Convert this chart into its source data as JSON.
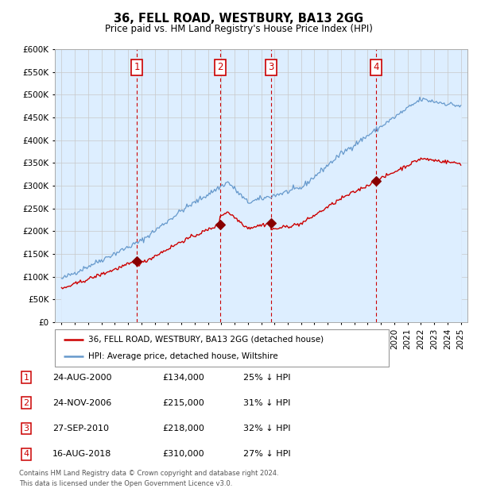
{
  "title": "36, FELL ROAD, WESTBURY, BA13 2GG",
  "subtitle": "Price paid vs. HM Land Registry's House Price Index (HPI)",
  "legend_line1": "36, FELL ROAD, WESTBURY, BA13 2GG (detached house)",
  "legend_line2": "HPI: Average price, detached house, Wiltshire",
  "footer1": "Contains HM Land Registry data © Crown copyright and database right 2024.",
  "footer2": "This data is licensed under the Open Government Licence v3.0.",
  "transactions": [
    {
      "label": "1",
      "date": "24-AUG-2000",
      "price": 134000,
      "hpi_diff": "25% ↓ HPI",
      "x": 2000.65
    },
    {
      "label": "2",
      "date": "24-NOV-2006",
      "price": 215000,
      "hpi_diff": "31% ↓ HPI",
      "x": 2006.9
    },
    {
      "label": "3",
      "date": "27-SEP-2010",
      "price": 218000,
      "hpi_diff": "32% ↓ HPI",
      "x": 2010.74
    },
    {
      "label": "4",
      "date": "16-AUG-2018",
      "price": 310000,
      "hpi_diff": "27% ↓ HPI",
      "x": 2018.62
    }
  ],
  "red_line_color": "#cc0000",
  "blue_line_color": "#6699cc",
  "blue_fill_color": "#ddeeff",
  "vline_color": "#cc0000",
  "marker_color": "#880000",
  "box_edge_color": "#cc0000",
  "ylim": [
    0,
    600000
  ],
  "xlim_start": 1994.5,
  "xlim_end": 2025.5
}
